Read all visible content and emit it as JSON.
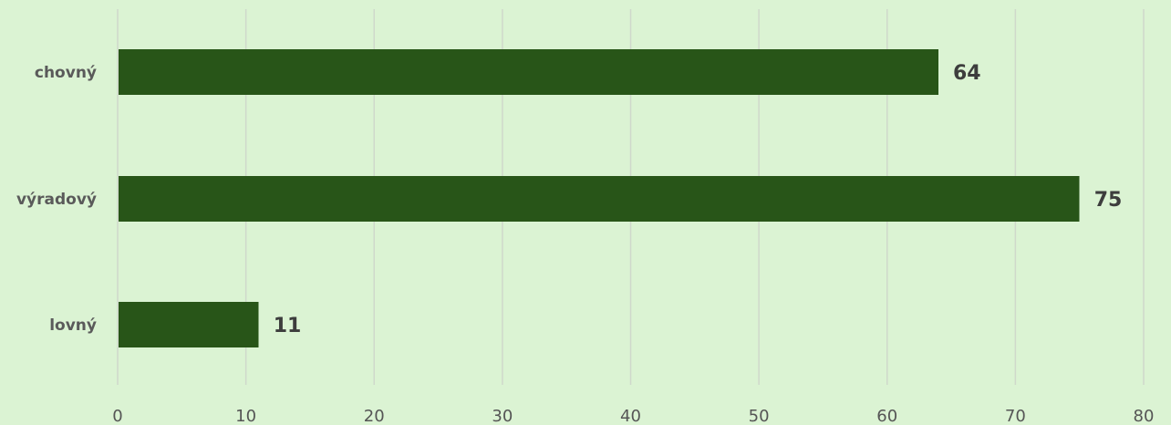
{
  "chart_data": {
    "type": "bar",
    "orientation": "horizontal",
    "categories": [
      "chovný",
      "výradový",
      "lovný"
    ],
    "values": [
      64,
      75,
      11
    ],
    "xlim": [
      0,
      80
    ],
    "xticks": [
      0,
      10,
      20,
      30,
      40,
      50,
      60,
      70,
      80
    ],
    "grid": true,
    "legend": "none",
    "title": "",
    "xlabel": "",
    "ylabel": ""
  },
  "colors": {
    "background": "#dbf3d3",
    "bar": "#285518",
    "grid": "#cfd8cb"
  }
}
